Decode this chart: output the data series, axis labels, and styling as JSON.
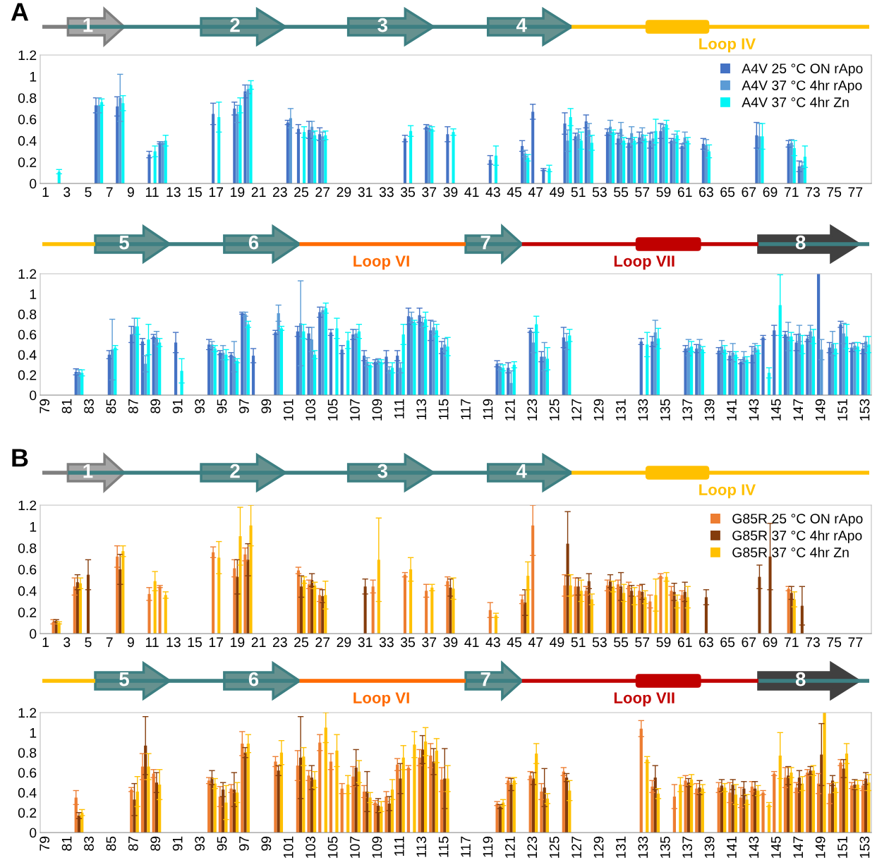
{
  "chart_data": [
    {
      "type": "bar",
      "annotations": [
        "A",
        "1",
        "2",
        "3",
        "4",
        "Loop IV"
      ],
      "legend": "top right",
      "grid": false,
      "x": [
        2,
        6,
        8,
        11,
        12,
        17,
        19,
        20,
        24,
        25,
        26,
        27,
        35,
        37,
        39,
        43,
        46,
        47,
        48,
        50,
        51,
        52,
        54,
        55,
        56,
        57,
        58,
        59,
        60,
        61,
        63,
        68,
        71,
        72
      ],
      "xlim": [
        0.5,
        78.5
      ],
      "xticks": [
        1,
        3,
        5,
        7,
        9,
        11,
        13,
        15,
        17,
        19,
        21,
        23,
        25,
        27,
        29,
        31,
        33,
        35,
        37,
        39,
        41,
        43,
        45,
        47,
        49,
        51,
        53,
        55,
        57,
        59,
        61,
        63,
        65,
        67,
        69,
        71,
        73,
        75,
        77
      ],
      "ylim": [
        0,
        1.2
      ],
      "yticks": [
        0,
        0.2,
        0.4,
        0.6,
        0.8,
        1,
        1.2
      ],
      "series": [
        {
          "name": "A4V 25 °C ON rApo",
          "color": "#4472c4",
          "values": [
            null,
            0.73,
            0.72,
            0.27,
            0.38,
            0.65,
            0.7,
            0.86,
            0.57,
            0.51,
            0.5,
            0.46,
            0.42,
            0.53,
            0.46,
            0.22,
            0.35,
            0.67,
            0.13,
            0.56,
            0.44,
            0.58,
            0.48,
            0.42,
            0.38,
            0.43,
            0.4,
            0.49,
            0.4,
            0.35,
            0.37,
            0.45,
            0.37,
            0.16
          ],
          "errors": [
            null,
            0.07,
            0.09,
            0.03,
            0.01,
            0.1,
            0.06,
            0.06,
            0.02,
            0.04,
            0.08,
            0.06,
            0.03,
            0.02,
            0.07,
            0.04,
            0.05,
            0.07,
            0.01,
            0.1,
            0.03,
            0.06,
            0.03,
            0.05,
            0.04,
            0.05,
            0.07,
            0.07,
            0.02,
            0.02,
            0.05,
            0.12,
            0.03,
            0.05
          ]
        },
        {
          "name": "A4V 37 °C 4hr rApo",
          "color": "#5b9bd5",
          "values": [
            null,
            0.73,
            0.8,
            null,
            0.38,
            null,
            0.65,
            0.88,
            0.61,
            null,
            0.53,
            0.44,
            null,
            0.52,
            null,
            null,
            0.28,
            null,
            null,
            0.4,
            0.46,
            0.5,
            0.53,
            0.51,
            0.47,
            0.46,
            0.42,
            0.53,
            0.42,
            0.43,
            0.36,
            0.44,
            0.38,
            0.17
          ],
          "errors": [
            null,
            0.07,
            0.22,
            null,
            0.01,
            null,
            0.08,
            0.04,
            0.09,
            null,
            0.05,
            0.04,
            null,
            0.02,
            null,
            null,
            0.03,
            null,
            null,
            0.1,
            0.05,
            0.06,
            0.06,
            0.06,
            0.06,
            0.06,
            0.06,
            0.02,
            0.04,
            0.05,
            0.05,
            0.12,
            0.03,
            0.03
          ]
        },
        {
          "name": "A4V 37 °C 4hr Zn",
          "color": "#00f5f5",
          "values": [
            0.11,
            0.76,
            0.75,
            0.3,
            0.4,
            0.62,
            0.73,
            0.92,
            null,
            0.48,
            0.45,
            0.45,
            0.49,
            0.51,
            0.48,
            0.26,
            0.24,
            null,
            0.14,
            0.62,
            0.4,
            0.38,
            0.48,
            0.4,
            0.4,
            0.42,
            0.49,
            0.55,
            0.45,
            0.4,
            0.3,
            0.44,
            0.33,
            0.25
          ],
          "errors": [
            0.02,
            0.03,
            0.07,
            0.05,
            0.05,
            0.14,
            0.07,
            0.04,
            null,
            0.05,
            0.04,
            0.04,
            0.05,
            0.02,
            0.03,
            0.09,
            0.03,
            null,
            0.03,
            0.08,
            0.08,
            0.07,
            0.02,
            0.03,
            0.03,
            0.03,
            0.11,
            0.04,
            0.04,
            0.03,
            0.06,
            0.12,
            0.07,
            0.1
          ]
        }
      ]
    },
    {
      "type": "bar",
      "annotations": [
        "5",
        "6",
        "Loop VI",
        "7",
        "Loop VII",
        "8"
      ],
      "grid": false,
      "x": [
        82,
        85,
        87,
        88,
        89,
        91,
        94,
        95,
        96,
        97,
        98,
        100,
        102,
        103,
        104,
        105,
        106,
        107,
        108,
        109,
        110,
        111,
        112,
        113,
        114,
        115,
        120,
        121,
        123,
        124,
        126,
        133,
        134,
        137,
        138,
        140,
        141,
        142,
        143,
        144,
        145,
        146,
        147,
        148,
        149,
        150,
        151,
        152,
        153
      ],
      "xlim": [
        78.5,
        153.5
      ],
      "xticks": [
        79,
        81,
        83,
        85,
        87,
        89,
        91,
        93,
        95,
        97,
        99,
        101,
        103,
        105,
        107,
        109,
        111,
        113,
        115,
        117,
        119,
        121,
        123,
        125,
        127,
        129,
        131,
        133,
        135,
        137,
        139,
        141,
        143,
        145,
        147,
        149,
        151,
        153
      ],
      "ylim": [
        0,
        1.2
      ],
      "yticks": [
        0,
        0.2,
        0.4,
        0.6,
        0.8,
        1,
        1.2
      ],
      "series": [
        {
          "color": "#4472c4",
          "values": [
            0.23,
            0.4,
            0.6,
            0.53,
            0.58,
            0.52,
            0.5,
            0.42,
            0.4,
            0.81,
            0.39,
            0.62,
            0.63,
            0.61,
            0.82,
            0.62,
            0.45,
            0.6,
            0.39,
            0.33,
            0.38,
            0.39,
            0.78,
            0.79,
            0.64,
            0.47,
            0.31,
            0.27,
            0.64,
            0.38,
            0.57,
            0.53,
            0.53,
            0.46,
            0.46,
            0.44,
            0.39,
            0.33,
            0.4,
            0.57,
            0.64,
            0.6,
            0.52,
            0.56,
            1.2,
            0.47,
            0.7,
            0.47,
            0.46
          ],
          "errors": [
            0.03,
            0.04,
            0.08,
            0.03,
            0.02,
            0.1,
            0.05,
            0.02,
            0.02,
            0.01,
            0.07,
            0.02,
            0.05,
            0.06,
            0.05,
            0.03,
            0.04,
            0.05,
            0.05,
            0.02,
            0.06,
            0.05,
            0.08,
            0.07,
            0.1,
            0.06,
            0.03,
            0.05,
            0.02,
            0.05,
            0.1,
            0.03,
            0.05,
            0.03,
            0.04,
            0.03,
            0.04,
            0.02,
            0.08,
            0.02,
            0.05,
            0.03,
            0.08,
            0.03,
            null,
            0.05,
            0.03,
            0.04,
            0.05
          ]
        },
        {
          "color": "#5b9bd5",
          "values": [
            0.23,
            0.45,
            0.68,
            0.31,
            0.57,
            null,
            0.5,
            0.42,
            0.38,
            0.8,
            null,
            0.81,
            0.71,
            0.55,
            0.84,
            null,
            null,
            0.61,
            0.33,
            0.34,
            0.25,
            0.27,
            0.77,
            0.72,
            0.67,
            0.5,
            0.28,
            0.12,
            0.52,
            0.38,
            0.53,
            null,
            0.62,
            0.47,
            0.5,
            0.48,
            0.42,
            0.38,
            0.47,
            null,
            null,
            0.58,
            0.61,
            0.63,
            0.45,
            0.51,
            0.61,
            0.49,
            0.53
          ],
          "errors": [
            0.02,
            0.3,
            0.08,
            0.08,
            0.06,
            null,
            0.03,
            0.07,
            0.15,
            0.02,
            null,
            0.08,
            0.42,
            0.12,
            0.03,
            null,
            null,
            0.04,
            0.04,
            0.02,
            0.03,
            0.05,
            0.05,
            0.05,
            0.06,
            0.06,
            0.03,
            0.12,
            0.1,
            0.14,
            0.08,
            null,
            0.12,
            0.08,
            0.05,
            0.06,
            0.09,
            0.05,
            0.04,
            null,
            null,
            0.14,
            0.08,
            0.06,
            0.1,
            0.12,
            0.1,
            0.03,
            0.05
          ]
        },
        {
          "color": "#00f5f5",
          "values": [
            0.22,
            0.47,
            0.68,
            0.55,
            0.52,
            0.24,
            0.46,
            0.4,
            0.34,
            0.7,
            null,
            0.66,
            0.63,
            0.4,
            0.86,
            0.66,
            0.54,
            0.63,
            0.3,
            0.33,
            0.27,
            0.6,
            0.72,
            0.75,
            0.64,
            0.48,
            0.27,
            0.3,
            0.7,
            0.36,
            0.59,
            0.5,
            0.56,
            0.48,
            0.45,
            0.45,
            0.4,
            0.35,
            0.45,
            0.22,
            0.89,
            0.58,
            0.5,
            0.58,
            null,
            0.46,
            0.58,
            0.48,
            0.5
          ],
          "errors": [
            0.03,
            0.02,
            0.08,
            0.15,
            0.04,
            0.12,
            0.03,
            0.05,
            0.02,
            0.03,
            null,
            0.02,
            0.07,
            0.04,
            0.05,
            0.1,
            0.08,
            0.07,
            0.02,
            0.02,
            0.05,
            0.1,
            0.02,
            0.07,
            0.06,
            0.09,
            0.03,
            0.03,
            0.08,
            0.11,
            0.06,
            0.12,
            0.1,
            0.05,
            0.03,
            0.04,
            0.03,
            0.03,
            0.04,
            0.05,
            0.3,
            0.04,
            0.09,
            0.07,
            null,
            0.05,
            0.12,
            0.04,
            0.08
          ]
        }
      ]
    },
    {
      "type": "bar",
      "annotations": [
        "B",
        "1",
        "2",
        "3",
        "4",
        "Loop IV"
      ],
      "legend": "top right",
      "grid": false,
      "x": [
        2,
        4,
        5,
        8,
        11,
        12,
        17,
        19,
        20,
        25,
        26,
        27,
        31,
        32,
        35,
        37,
        39,
        43,
        46,
        47,
        50,
        51,
        52,
        54,
        55,
        56,
        57,
        58,
        59,
        60,
        61,
        63,
        68,
        69,
        71,
        72
      ],
      "xlim": [
        0.5,
        78.5
      ],
      "xticks": [
        1,
        3,
        5,
        7,
        9,
        11,
        13,
        15,
        17,
        19,
        21,
        23,
        25,
        27,
        29,
        31,
        33,
        35,
        37,
        39,
        41,
        43,
        45,
        47,
        49,
        51,
        53,
        55,
        57,
        59,
        61,
        63,
        65,
        67,
        69,
        71,
        73,
        75,
        77
      ],
      "ylim": [
        0,
        1.2
      ],
      "yticks": [
        0,
        0.2,
        0.4,
        0.6,
        0.8,
        1,
        1.2
      ],
      "series": [
        {
          "name": "G85R 25 °C ON rApo",
          "color": "#ed7d31",
          "values": [
            0.11,
            0.44,
            null,
            0.72,
            0.37,
            0.44,
            0.76,
            0.61,
            0.74,
            0.59,
            0.46,
            0.36,
            null,
            0.44,
            0.55,
            0.4,
            0.49,
            0.22,
            0.32,
            1.01,
            0.45,
            0.44,
            0.4,
            0.45,
            0.46,
            0.45,
            0.4,
            0.3,
            0.54,
            0.4,
            0.36,
            null,
            null,
            null,
            0.42,
            null
          ],
          "errors": [
            0.02,
            0.08,
            null,
            0.1,
            0.06,
            0.01,
            0.05,
            0.08,
            0.06,
            0.03,
            0.04,
            0.06,
            null,
            0.06,
            0.02,
            0.06,
            0.04,
            0.07,
            0.04,
            [
              0.73,
              1.2
            ],
            0.1,
            0.08,
            0.04,
            0.05,
            0.04,
            0.03,
            0.05,
            0.06,
            0.02,
            0.04,
            0.04,
            null,
            null,
            null,
            0.02,
            null
          ]
        },
        {
          "name": "G85R 37 °C 4hr rApo",
          "color": "#843c0c",
          "values": [
            0.12,
            0.48,
            0.55,
            0.6,
            null,
            null,
            null,
            0.53,
            0.69,
            0.44,
            0.5,
            0.35,
            0.44,
            null,
            null,
            null,
            0.43,
            null,
            0.29,
            null,
            0.84,
            0.44,
            0.49,
            0.49,
            0.44,
            0.4,
            0.39,
            null,
            null,
            0.39,
            0.39,
            0.34,
            0.53,
            0.72,
            0.38,
            0.26
          ],
          "errors": [
            0.01,
            0.07,
            0.14,
            0.14,
            null,
            null,
            null,
            0.16,
            0.15,
            0.1,
            0.06,
            0.06,
            0.07,
            null,
            null,
            null,
            0.08,
            null,
            0.12,
            null,
            0.3,
            0.08,
            0.07,
            0.06,
            0.13,
            0.05,
            0.07,
            null,
            null,
            0.08,
            0.09,
            0.07,
            0.11,
            0.31,
            0.06,
            0.18
          ]
        },
        {
          "name": "G85R 37 °C 4hr Zn",
          "color": "#ffc000",
          "values": [
            0.1,
            0.47,
            null,
            0.77,
            0.49,
            0.36,
            0.71,
            0.91,
            1.01,
            0.5,
            0.45,
            0.36,
            null,
            0.69,
            0.6,
            0.43,
            0.42,
            0.17,
            0.54,
            null,
            0.45,
            0.4,
            0.32,
            0.44,
            0.38,
            0.35,
            0.34,
            0.36,
            0.53,
            0.3,
            0.34,
            null,
            null,
            null,
            0.32,
            null
          ],
          "errors": [
            0.01,
            0.05,
            null,
            0.05,
            0.09,
            0.03,
            0.15,
            0.27,
            0.19,
            0.03,
            0.03,
            0.13,
            null,
            0.39,
            0.11,
            0.03,
            0.1,
            0.02,
            0.13,
            null,
            0.1,
            0.1,
            0.05,
            0.05,
            0.08,
            0.08,
            0.06,
            0.15,
            0.04,
            0.06,
            0.1,
            null,
            null,
            null,
            0.07,
            null
          ]
        }
      ]
    },
    {
      "type": "bar",
      "annotations": [
        "5",
        "6",
        "Loop VI",
        "7",
        "Loop VII",
        "8"
      ],
      "grid": false,
      "x": [
        82,
        87,
        88,
        89,
        94,
        95,
        96,
        97,
        100,
        102,
        103,
        104,
        105,
        106,
        107,
        108,
        109,
        110,
        111,
        112,
        113,
        114,
        115,
        120,
        121,
        123,
        124,
        126,
        133,
        134,
        136,
        137,
        138,
        140,
        141,
        142,
        143,
        144,
        145,
        146,
        147,
        148,
        149,
        150,
        151,
        152,
        153
      ],
      "xlim": [
        78.5,
        153.5
      ],
      "xticks": [
        79,
        81,
        83,
        85,
        87,
        89,
        91,
        93,
        95,
        97,
        99,
        101,
        103,
        105,
        107,
        109,
        111,
        113,
        115,
        117,
        119,
        121,
        123,
        125,
        127,
        129,
        131,
        133,
        135,
        137,
        139,
        141,
        143,
        145,
        147,
        149,
        151,
        153
      ],
      "ylim": [
        0,
        1.2
      ],
      "yticks": [
        0,
        0.2,
        0.4,
        0.6,
        0.8,
        1,
        1.2
      ],
      "series": [
        {
          "color": "#ed7d31",
          "values": [
            0.35,
            0.43,
            0.66,
            0.59,
            0.52,
            0.36,
            0.44,
            0.89,
            0.71,
            0.67,
            0.57,
            0.9,
            0.71,
            0.44,
            0.56,
            0.41,
            0.3,
            0.36,
            0.68,
            0.65,
            0.75,
            0.77,
            0.53,
            0.29,
            0.52,
            0.57,
            0.41,
            0.61,
            1.04,
            0.46,
            0.36,
            0.52,
            0.44,
            0.45,
            0.4,
            0.35,
            0.46,
            0.4,
            0.59,
            0.55,
            0.45,
            0.6,
            0.49,
            0.39,
            0.7,
            0.47,
            0.47
          ],
          "errors": [
            0.07,
            0.02,
            0.13,
            0.04,
            0.03,
            0.1,
            0.04,
            0.12,
            0.05,
            0.15,
            0.05,
            0.08,
            0.08,
            0.05,
            0.1,
            0.06,
            0.02,
            0.05,
            0.06,
            0.02,
            0.08,
            0.12,
            0.12,
            0.02,
            0.03,
            0.04,
            0.08,
            0.04,
            0.08,
            0.06,
            0.12,
            0.05,
            0.05,
            0.05,
            0.1,
            0.1,
            0.05,
            0.02,
            0.02,
            0.1,
            0.05,
            0.03,
            0.1,
            0.1,
            0.03,
            0.03,
            0.05
          ]
        },
        {
          "color": "#843c0c",
          "values": [
            0.17,
            0.33,
            0.87,
            0.5,
            0.55,
            0.43,
            0.43,
            0.8,
            0.62,
            0.75,
            0.55,
            null,
            null,
            null,
            0.65,
            0.41,
            0.27,
            0.29,
            0.54,
            null,
            0.83,
            0.71,
            0.54,
            0.26,
            0.48,
            0.54,
            0.45,
            0.55,
            null,
            0.55,
            null,
            0.5,
            0.45,
            0.47,
            0.48,
            0.44,
            0.44,
            null,
            null,
            0.57,
            0.55,
            0.62,
            0.78,
            0.52,
            0.64,
            0.48,
            0.54
          ],
          "errors": [
            0.03,
            0.16,
            0.29,
            0.1,
            0.07,
            0.07,
            0.17,
            0.05,
            0.05,
            0.41,
            0.12,
            null,
            null,
            null,
            0.18,
            0.2,
            0.07,
            0.07,
            0.15,
            null,
            0.14,
            0.13,
            0.3,
            0.02,
            0.06,
            0.06,
            0.19,
            0.04,
            null,
            0.12,
            null,
            0.04,
            0.07,
            0.06,
            0.05,
            0.07,
            0.07,
            null,
            null,
            0.09,
            0.07,
            0.04,
            0.31,
            0.05,
            0.09,
            0.05,
            0.06
          ]
        },
        {
          "color": "#ffc000",
          "values": [
            0.2,
            0.41,
            0.66,
            0.48,
            0.49,
            0.3,
            0.4,
            0.89,
            0.8,
            0.76,
            0.53,
            1.05,
            0.82,
            0.48,
            0.61,
            0.35,
            0.26,
            0.43,
            0.75,
            0.88,
            0.91,
            0.82,
            0.54,
            0.3,
            0.52,
            0.79,
            0.34,
            0.42,
            0.73,
            0.39,
            0.48,
            0.53,
            0.44,
            0.45,
            0.38,
            0.33,
            0.42,
            0.28,
            0.77,
            0.6,
            0.49,
            0.62,
            1.2,
            0.45,
            0.79,
            0.48,
            0.5
          ],
          "errors": [
            0.03,
            0.15,
            0.13,
            0.15,
            0.05,
            0.17,
            0.1,
            0.09,
            0.12,
            0.09,
            0.08,
            0.15,
            0.16,
            0.09,
            0.11,
            0.05,
            0.05,
            0.1,
            0.12,
            0.13,
            0.14,
            0.12,
            0.13,
            0.03,
            0.03,
            0.1,
            0.05,
            0.1,
            0.03,
            0.05,
            0.07,
            0.05,
            0.04,
            0.04,
            0.1,
            0.05,
            0.05,
            0.02,
            0.23,
            0.05,
            0.07,
            0.05,
            null,
            0.05,
            0.1,
            0.04,
            0.08
          ]
        }
      ]
    }
  ]
}
